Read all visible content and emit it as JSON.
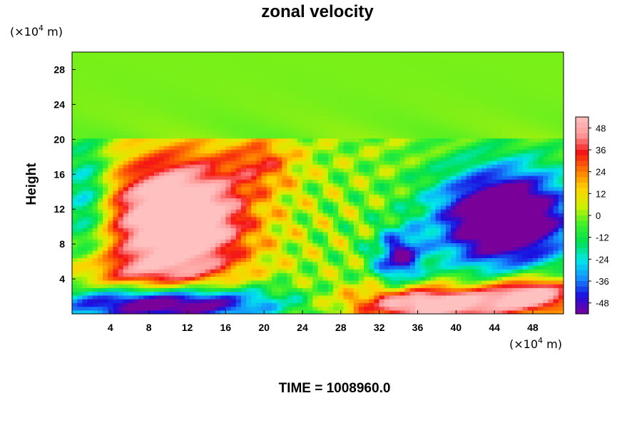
{
  "chart_data": {
    "type": "heatmap",
    "title": "zonal velocity",
    "ylabel": "Height",
    "xlabel": "",
    "x_unit_prefix": "(×10",
    "x_unit_exp": "4",
    "x_unit_suffix": " m)",
    "y_unit_prefix": "(×10",
    "y_unit_exp": "4",
    "y_unit_suffix": " m)",
    "xlim": [
      0,
      51.2
    ],
    "ylim": [
      0,
      30
    ],
    "x_ticks": [
      4,
      8,
      12,
      16,
      20,
      24,
      28,
      32,
      36,
      40,
      44,
      48
    ],
    "y_ticks": [
      4,
      8,
      12,
      16,
      20,
      24,
      28
    ],
    "colorbar": {
      "range": [
        -54,
        54
      ],
      "ticks": [
        48,
        36,
        24,
        12,
        0,
        -12,
        -24,
        -36,
        -48
      ],
      "scale": [
        "#7a009a",
        "#1a0fe0",
        "#1590ff",
        "#00e8e8",
        "#00e050",
        "#3ef02a",
        "#d0f000",
        "#ffd200",
        "#ff7800",
        "#f41414",
        "#ff9a9a",
        "#ffc0c0"
      ]
    },
    "features": [
      {
        "label": "strong eastward jet",
        "x": 11,
        "y": 11,
        "amplitude": 54
      },
      {
        "label": "strong westward jet",
        "x": 45,
        "y": 11,
        "amplitude": -54
      },
      {
        "label": "low-level westward flow",
        "x": 10,
        "y": 1,
        "amplitude": -54
      },
      {
        "label": "low-level eastward flow",
        "x": 38,
        "y": 1,
        "amplitude": 50
      }
    ]
  },
  "footer": {
    "time_text": "TIME = 1008960.0"
  }
}
